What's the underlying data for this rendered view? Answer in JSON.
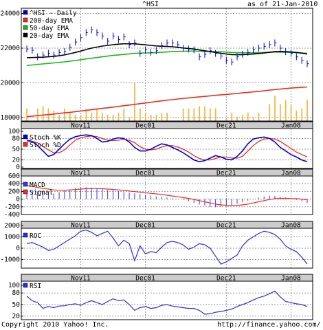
{
  "header": {
    "symbol": "^HSI",
    "date_text": "as of 21-Jan-2010"
  },
  "footer": {
    "copyright": "Copyright 2010 Yahoo! Inc.",
    "url": "http://finance.yahoo.com/"
  },
  "colors": {
    "price": "#0000cc",
    "ema200": "#e8301c",
    "ema50": "#18b818",
    "ema20": "#000000",
    "volume": "#f0b848",
    "stoch_k": "#0000dd",
    "stoch_d": "#ee2b1d",
    "macd_bar": "#3333ff",
    "signal": "#ee2b1d",
    "roc": "#2a2aee",
    "rsi": "#2a2aee",
    "axis_band": "#cccccc",
    "grid": "#999999"
  },
  "chart_data": [
    {
      "type": "line",
      "panel": "price",
      "ylim": [
        17800,
        24300
      ],
      "yticks": [
        18000,
        20000,
        22000,
        24000
      ],
      "legend": [
        "^HSI - Daily",
        "200-day EMA",
        "50-day EMA",
        "20-day EMA"
      ],
      "ohlc_close": [
        21950,
        21880,
        21500,
        21600,
        21700,
        21600,
        21750,
        21800,
        22050,
        22350,
        22600,
        22900,
        23050,
        22900,
        22700,
        22400,
        22700,
        22500,
        22650,
        22200,
        22300,
        21700,
        21900,
        21750,
        21850,
        22150,
        22300,
        22300,
        22200,
        22000,
        21950,
        21900,
        21500,
        21650,
        21850,
        21700,
        21550,
        21300,
        21200,
        21500,
        21650,
        21750,
        21900,
        22000,
        22100,
        22200,
        22300,
        22000,
        21800,
        21700,
        21500,
        21300,
        21100
      ],
      "ema200": [
        18050,
        18080,
        18110,
        18140,
        18170,
        18200,
        18240,
        18270,
        18300,
        18340,
        18380,
        18410,
        18450,
        18490,
        18530,
        18560,
        18600,
        18640,
        18680,
        18720,
        18760,
        18800,
        18840,
        18880,
        18920,
        18960,
        19000,
        19030,
        19070,
        19100,
        19130,
        19160,
        19190,
        19220,
        19250,
        19280,
        19310,
        19330,
        19360,
        19390,
        19420,
        19450,
        19480,
        19510,
        19540,
        19580,
        19610,
        19640,
        19670,
        19700,
        19720,
        19740,
        19760
      ],
      "ema50": [
        21000,
        21030,
        21060,
        21090,
        21120,
        21150,
        21180,
        21210,
        21250,
        21290,
        21330,
        21380,
        21420,
        21460,
        21500,
        21540,
        21580,
        21610,
        21640,
        21670,
        21700,
        21710,
        21720,
        21730,
        21740,
        21760,
        21780,
        21800,
        21810,
        21820,
        21830,
        21830,
        21820,
        21810,
        21810,
        21800,
        21790,
        21770,
        21750,
        21740,
        21730,
        21730,
        21730,
        21740,
        21750,
        21760,
        21770,
        21770,
        21760,
        21750,
        21740,
        21720,
        21700
      ],
      "ema20": [
        21450,
        21460,
        21470,
        21480,
        21500,
        21520,
        21560,
        21610,
        21680,
        21750,
        21830,
        21920,
        22000,
        22060,
        22120,
        22160,
        22200,
        22230,
        22250,
        22250,
        22250,
        22220,
        22190,
        22160,
        22130,
        22110,
        22100,
        22080,
        22050,
        22010,
        21980,
        21950,
        21900,
        21850,
        21800,
        21750,
        21700,
        21660,
        21630,
        21620,
        21620,
        21640,
        21660,
        21690,
        21720,
        21760,
        21800,
        21810,
        21800,
        21780,
        21750,
        21710,
        21660
      ]
    },
    {
      "type": "bar",
      "panel": "volume",
      "values": [
        3,
        0,
        3,
        3.5,
        3,
        2.5,
        1.5,
        3,
        2,
        1.5,
        1.5,
        3,
        2,
        3,
        2,
        1.5,
        1.5,
        2,
        3,
        1,
        9,
        3,
        2,
        1.5,
        1.5,
        2,
        2,
        0,
        0,
        3,
        3,
        3,
        3.5,
        3.5,
        3,
        3,
        0,
        0.5,
        2,
        1,
        1.5,
        2,
        1,
        2,
        0,
        4,
        6,
        4,
        5,
        4,
        2.5,
        3,
        5
      ]
    },
    {
      "type": "line",
      "panel": "stochastic",
      "ylim": [
        0,
        100
      ],
      "yticks": [
        0,
        20,
        50,
        80,
        100
      ],
      "legend": [
        "Stoch %K",
        "Stoch %D"
      ],
      "stoch_k": [
        75,
        72,
        60,
        45,
        30,
        35,
        50,
        65,
        78,
        85,
        88,
        90,
        88,
        80,
        70,
        72,
        78,
        82,
        80,
        70,
        55,
        45,
        45,
        50,
        58,
        65,
        62,
        55,
        48,
        40,
        30,
        20,
        15,
        18,
        25,
        32,
        28,
        22,
        20,
        30,
        45,
        65,
        78,
        82,
        84,
        80,
        70,
        55,
        45,
        35,
        28,
        20,
        15
      ],
      "stoch_d": [
        70,
        72,
        68,
        58,
        48,
        40,
        40,
        48,
        62,
        75,
        82,
        85,
        87,
        85,
        80,
        75,
        74,
        75,
        78,
        75,
        68,
        57,
        50,
        48,
        50,
        56,
        60,
        60,
        56,
        50,
        42,
        32,
        24,
        20,
        20,
        24,
        28,
        28,
        25,
        25,
        30,
        45,
        60,
        72,
        78,
        80,
        78,
        72,
        62,
        52,
        42,
        35,
        28
      ]
    },
    {
      "type": "bar",
      "panel": "macd",
      "ylim": [
        -400,
        600
      ],
      "yticks": [
        -400,
        -200,
        0,
        200,
        400,
        600
      ],
      "legend": [
        "MACD",
        "Signal"
      ],
      "macd": [
        230,
        220,
        200,
        180,
        160,
        150,
        180,
        220,
        250,
        280,
        300,
        310,
        300,
        280,
        260,
        240,
        230,
        210,
        190,
        170,
        150,
        130,
        110,
        90,
        70,
        60,
        40,
        20,
        0,
        -20,
        -60,
        -100,
        -140,
        -170,
        -200,
        -210,
        -200,
        -180,
        -160,
        -120,
        -80,
        -40,
        0,
        40,
        70,
        90,
        80,
        60,
        40,
        20,
        -20,
        -60,
        -100
      ],
      "signal": [
        350,
        330,
        300,
        280,
        260,
        240,
        230,
        230,
        240,
        250,
        260,
        270,
        275,
        275,
        270,
        260,
        250,
        240,
        225,
        210,
        195,
        180,
        165,
        150,
        135,
        120,
        100,
        80,
        60,
        40,
        20,
        -10,
        -40,
        -70,
        -100,
        -130,
        -150,
        -160,
        -165,
        -160,
        -150,
        -130,
        -100,
        -70,
        -40,
        -10,
        10,
        20,
        20,
        15,
        10,
        0,
        -20
      ]
    },
    {
      "type": "line",
      "panel": "roc",
      "ylim": [
        -2000,
        2000
      ],
      "yticks": [
        -1000,
        0,
        1000,
        2000
      ],
      "legend": [
        "ROC"
      ],
      "values": [
        400,
        500,
        300,
        100,
        -200,
        -100,
        200,
        500,
        800,
        1100,
        1500,
        1600,
        1400,
        1100,
        1300,
        1500,
        900,
        200,
        700,
        400,
        -1100,
        200,
        -500,
        -300,
        -400,
        100,
        500,
        600,
        500,
        300,
        -100,
        100,
        400,
        300,
        0,
        -700,
        -1400,
        -1200,
        -900,
        -600,
        200,
        700,
        1000,
        1300,
        1500,
        1400,
        1200,
        800,
        200,
        -100,
        -300,
        -800,
        -1400
      ]
    },
    {
      "type": "line",
      "panel": "rsi",
      "ylim": [
        0,
        100
      ],
      "yticks": [
        20,
        50,
        80,
        100
      ],
      "legend": [
        "RSI"
      ],
      "values": [
        72,
        60,
        55,
        40,
        45,
        42,
        46,
        47,
        50,
        52,
        48,
        55,
        60,
        55,
        50,
        58,
        65,
        60,
        62,
        50,
        35,
        42,
        45,
        40,
        42,
        48,
        50,
        46,
        44,
        42,
        40,
        40,
        35,
        25,
        26,
        30,
        32,
        35,
        38,
        45,
        50,
        55,
        62,
        68,
        72,
        78,
        85,
        70,
        58,
        55,
        52,
        50,
        45
      ]
    }
  ],
  "x_axis": {
    "tick_labels": [
      "Nov11",
      "Dec01",
      "Dec21",
      "Jan08"
    ],
    "tick_index": [
      10,
      22,
      37,
      49
    ]
  }
}
